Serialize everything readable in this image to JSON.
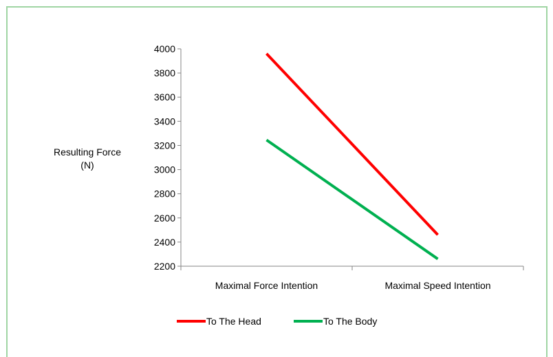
{
  "chart_data": {
    "type": "line",
    "categories": [
      "Maximal Force Intention",
      "Maximal Speed Intention"
    ],
    "series": [
      {
        "name": "To The Head",
        "values": [
          3960,
          2460
        ],
        "color": "#ff0000"
      },
      {
        "name": "To The Body",
        "values": [
          3245,
          2260
        ],
        "color": "#00b050"
      }
    ],
    "ylabel_lines": [
      "Resulting Force",
      "(N)"
    ],
    "ylim": [
      2200,
      4000
    ],
    "yticks": [
      2200,
      2400,
      2600,
      2800,
      3000,
      3200,
      3400,
      3600,
      3800,
      4000
    ],
    "grid": false,
    "legend": "bottom"
  },
  "colors": {
    "frame_border": "#9fd5a3",
    "axis": "#868686"
  }
}
